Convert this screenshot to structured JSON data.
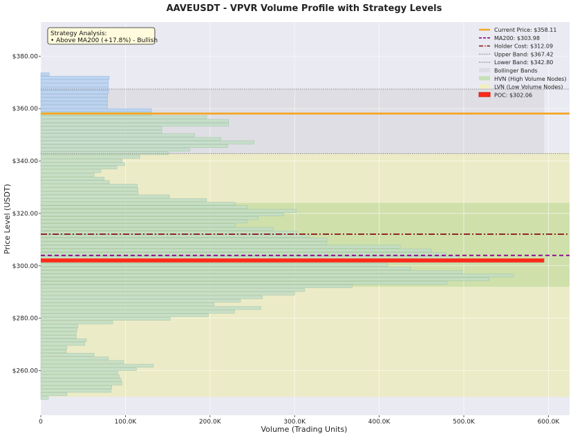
{
  "chart_data": {
    "type": "bar",
    "orientation": "horizontal",
    "title": "AAVEUSDT - VPVR Volume Profile with Strategy Levels",
    "xlabel": "Volume (Trading Units)",
    "ylabel": "Price Level (USDT)",
    "xlim": [
      0,
      625000
    ],
    "ylim": [
      243,
      393
    ],
    "x_ticks": [
      0,
      100000,
      200000,
      300000,
      400000,
      500000,
      600000
    ],
    "x_tick_labels": [
      "0",
      "100.0K",
      "200.0K",
      "300.0K",
      "400.0K",
      "500.0K",
      "600.0K"
    ],
    "y_ticks": [
      260,
      280,
      300,
      320,
      340,
      360,
      380
    ],
    "y_tick_labels": [
      "$260.00",
      "$280.00",
      "$300.00",
      "$320.00",
      "$340.00",
      "$360.00",
      "$380.00"
    ],
    "grid": true,
    "legend_position": "top-right",
    "bin_height": 1.37,
    "profile": [
      {
        "price": 249.6,
        "volume": 9000
      },
      {
        "price": 251.0,
        "volume": 31000
      },
      {
        "price": 252.3,
        "volume": 83000
      },
      {
        "price": 253.7,
        "volume": 84000
      },
      {
        "price": 255.1,
        "volume": 96000
      },
      {
        "price": 256.5,
        "volume": 95000
      },
      {
        "price": 257.8,
        "volume": 93000
      },
      {
        "price": 259.2,
        "volume": 91000
      },
      {
        "price": 260.6,
        "volume": 113000
      },
      {
        "price": 261.9,
        "volume": 133000
      },
      {
        "price": 263.3,
        "volume": 98000
      },
      {
        "price": 264.7,
        "volume": 80000
      },
      {
        "price": 266.1,
        "volume": 63000
      },
      {
        "price": 267.4,
        "volume": 30000
      },
      {
        "price": 268.8,
        "volume": 31000
      },
      {
        "price": 270.2,
        "volume": 52000
      },
      {
        "price": 271.6,
        "volume": 54000
      },
      {
        "price": 272.9,
        "volume": 42000
      },
      {
        "price": 274.3,
        "volume": 42000
      },
      {
        "price": 275.7,
        "volume": 43000
      },
      {
        "price": 277.0,
        "volume": 44000
      },
      {
        "price": 278.4,
        "volume": 85000
      },
      {
        "price": 279.8,
        "volume": 153000
      },
      {
        "price": 281.2,
        "volume": 198000
      },
      {
        "price": 282.5,
        "volume": 229000
      },
      {
        "price": 283.9,
        "volume": 260000
      },
      {
        "price": 285.3,
        "volume": 205000
      },
      {
        "price": 286.7,
        "volume": 236000
      },
      {
        "price": 288.0,
        "volume": 262000
      },
      {
        "price": 289.4,
        "volume": 300000
      },
      {
        "price": 290.8,
        "volume": 312000
      },
      {
        "price": 292.2,
        "volume": 368000
      },
      {
        "price": 293.5,
        "volume": 480000
      },
      {
        "price": 294.9,
        "volume": 530000
      },
      {
        "price": 296.3,
        "volume": 559000
      },
      {
        "price": 297.6,
        "volume": 498000
      },
      {
        "price": 299.0,
        "volume": 437000
      },
      {
        "price": 300.4,
        "volume": 410000
      },
      {
        "price": 301.8,
        "volume": 595000
      },
      {
        "price": 303.1,
        "volume": 495000
      },
      {
        "price": 304.5,
        "volume": 479000
      },
      {
        "price": 305.9,
        "volume": 462000
      },
      {
        "price": 307.3,
        "volume": 425000
      },
      {
        "price": 308.6,
        "volume": 338000
      },
      {
        "price": 310.0,
        "volume": 339000
      },
      {
        "price": 311.4,
        "volume": 318000
      },
      {
        "price": 312.7,
        "volume": 303000
      },
      {
        "price": 314.1,
        "volume": 275000
      },
      {
        "price": 315.5,
        "volume": 230000
      },
      {
        "price": 316.9,
        "volume": 244000
      },
      {
        "price": 318.2,
        "volume": 257000
      },
      {
        "price": 319.6,
        "volume": 287000
      },
      {
        "price": 321.0,
        "volume": 302000
      },
      {
        "price": 322.4,
        "volume": 244000
      },
      {
        "price": 323.7,
        "volume": 230000
      },
      {
        "price": 325.1,
        "volume": 196000
      },
      {
        "price": 326.5,
        "volume": 152000
      },
      {
        "price": 327.8,
        "volume": 115000
      },
      {
        "price": 329.2,
        "volume": 115000
      },
      {
        "price": 330.6,
        "volume": 114000
      },
      {
        "price": 332.0,
        "volume": 81000
      },
      {
        "price": 333.3,
        "volume": 75000
      },
      {
        "price": 334.7,
        "volume": 63000
      },
      {
        "price": 336.1,
        "volume": 71000
      },
      {
        "price": 337.5,
        "volume": 90000
      },
      {
        "price": 338.8,
        "volume": 99000
      },
      {
        "price": 340.2,
        "volume": 96000
      },
      {
        "price": 341.6,
        "volume": 117000
      },
      {
        "price": 343.0,
        "volume": 151000
      },
      {
        "price": 344.3,
        "volume": 176000
      },
      {
        "price": 345.7,
        "volume": 221000
      },
      {
        "price": 347.1,
        "volume": 252000
      },
      {
        "price": 348.4,
        "volume": 213000
      },
      {
        "price": 349.8,
        "volume": 182000
      },
      {
        "price": 351.2,
        "volume": 143000
      },
      {
        "price": 352.6,
        "volume": 143000
      },
      {
        "price": 353.9,
        "volume": 222000
      },
      {
        "price": 355.3,
        "volume": 222000
      },
      {
        "price": 356.7,
        "volume": 196000
      },
      {
        "price": 358.0,
        "volume": 131000
      },
      {
        "price": 359.4,
        "volume": 131000
      },
      {
        "price": 360.8,
        "volume": 79000
      },
      {
        "price": 362.2,
        "volume": 79000
      },
      {
        "price": 363.5,
        "volume": 79000
      },
      {
        "price": 364.9,
        "volume": 79000
      },
      {
        "price": 366.3,
        "volume": 80000
      },
      {
        "price": 367.6,
        "volume": 80000
      },
      {
        "price": 369.0,
        "volume": 80000
      },
      {
        "price": 370.4,
        "volume": 80000
      },
      {
        "price": 371.8,
        "volume": 81000
      },
      {
        "price": 373.1,
        "volume": 10000
      }
    ],
    "levels": {
      "current_price": 358.11,
      "ma200": 303.98,
      "holder_cost": 312.09,
      "upper_band": 367.42,
      "lower_band": 342.8,
      "poc": 302.06
    },
    "zones": {
      "bollinger_band": [
        342.8,
        367.42
      ],
      "hvn": [
        292,
        324
      ],
      "lvn": [
        250,
        343
      ]
    },
    "poc_bar_volume": 595000,
    "band_shade_max_volume": 595000,
    "legend": [
      {
        "label": "Current Price: $358.11",
        "style": "solid",
        "color": "#f5a623"
      },
      {
        "label": "MA200: $303.98",
        "style": "dashed",
        "color": "#8b008b"
      },
      {
        "label": "Holder Cost: $312.09",
        "style": "dashdot",
        "color": "#8b1a1a"
      },
      {
        "label": "Upper Band: $367.42",
        "style": "dotted",
        "color": "#888888"
      },
      {
        "label": "Lower Band: $342.80",
        "style": "dotted",
        "color": "#888888"
      },
      {
        "label": "Bollinger Bands",
        "style": "patch",
        "color": "#dcdce4"
      },
      {
        "label": "HVN (High Volume Nodes)",
        "style": "patch",
        "color": "#c8e0b8"
      },
      {
        "label": "LVN (Low Volume Nodes)",
        "style": "patch",
        "color": "#f2efc0"
      },
      {
        "label": "POC: $302.06",
        "style": "patch",
        "color": "#ff2a1a"
      }
    ],
    "annotation": {
      "title": "Strategy Analysis:",
      "line": "• Above MA200 (+17.8%) - Bullish"
    },
    "colors": {
      "bar_above": "#b9d2f0",
      "bar_above_edge": "#8fb5e0",
      "bar_below": "#c4dec7",
      "bar_below_edge": "#9cc2a2",
      "poc": "#ff2a1a",
      "plot_bg": "#eaeaf2",
      "annotation_bg": "#fffbdc"
    }
  }
}
